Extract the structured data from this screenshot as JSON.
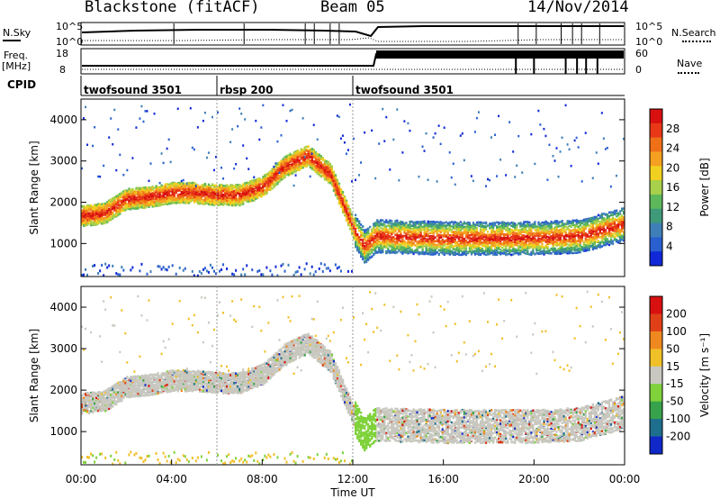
{
  "header": {
    "title": "Blackstone (fitACF)",
    "beam": "Beam 05",
    "date": "14/Nov/2014"
  },
  "summary_panels": {
    "nsky_label": "N.Sky",
    "nsky_ticks": [
      "10^5",
      "10^0"
    ],
    "nsearch_label": "N.Search",
    "nsearch_ticks": [
      "10^5",
      "10^0"
    ],
    "freq_label": "Freq.",
    "freq_unit": "[MHz]",
    "freq_ticks": [
      "18",
      "8"
    ],
    "nave_label": "Nave",
    "nave_ticks": [
      "60",
      "0"
    ],
    "cpid_label": "CPID",
    "cpid_segments": [
      {
        "label": "twofsound 3501",
        "start_hour": 0,
        "end_hour": 6
      },
      {
        "label": "rbsp 200",
        "start_hour": 6,
        "end_hour": 12
      },
      {
        "label": "twofsound 3501",
        "start_hour": 12,
        "end_hour": 24
      }
    ]
  },
  "chart_data": [
    {
      "type": "heatmap",
      "name": "power",
      "ylabel": "Slant Range [km]",
      "y_ticks": [
        "1000",
        "2000",
        "3000",
        "4000"
      ],
      "ylim": [
        200,
        4500
      ],
      "xlim": [
        0,
        24
      ],
      "colorbar": {
        "label": "Power [dB]",
        "ticks": [
          "4",
          "8",
          "12",
          "16",
          "20",
          "24",
          "28"
        ],
        "colors": [
          "#1028d8",
          "#2a5fd0",
          "#3f7fb8",
          "#3e9a78",
          "#5cb85a",
          "#a8d04a",
          "#f0d020",
          "#f5a020",
          "#f07018",
          "#e83818",
          "#d81010"
        ]
      },
      "echo_band_range_km": [
        [
          0,
          1700
        ],
        [
          1,
          1750
        ],
        [
          2,
          2100
        ],
        [
          3,
          2150
        ],
        [
          4,
          2250
        ],
        [
          5,
          2250
        ],
        [
          6,
          2200
        ],
        [
          7,
          2200
        ],
        [
          8,
          2400
        ],
        [
          9,
          2900
        ],
        [
          10,
          3150
        ],
        [
          11,
          2700
        ],
        [
          12,
          1400
        ],
        [
          12.5,
          950
        ],
        [
          13,
          1200
        ],
        [
          16,
          1150
        ],
        [
          20,
          1150
        ],
        [
          22,
          1200
        ],
        [
          23,
          1350
        ],
        [
          24,
          1500
        ]
      ]
    },
    {
      "type": "heatmap",
      "name": "velocity",
      "ylabel": "Slant Range [km]",
      "y_ticks": [
        "1000",
        "2000",
        "3000",
        "4000"
      ],
      "ylim": [
        200,
        4500
      ],
      "xlim": [
        0,
        24
      ],
      "colorbar": {
        "label": "Velocity [m s⁻¹]",
        "ticks": [
          "200",
          "100",
          "50",
          "15",
          "-15",
          "-50",
          "-100",
          "-200"
        ],
        "colors": [
          "#1028c8",
          "#1e6f8e",
          "#37a24c",
          "#7fd23a",
          "#c8c8c0",
          "#f0c028",
          "#f08820",
          "#e04018",
          "#d81010"
        ]
      }
    }
  ],
  "x_axis": {
    "label": "Time UT",
    "ticks": [
      "00:00",
      "04:00",
      "08:00",
      "12:00",
      "16:00",
      "20:00",
      "00:00"
    ]
  }
}
